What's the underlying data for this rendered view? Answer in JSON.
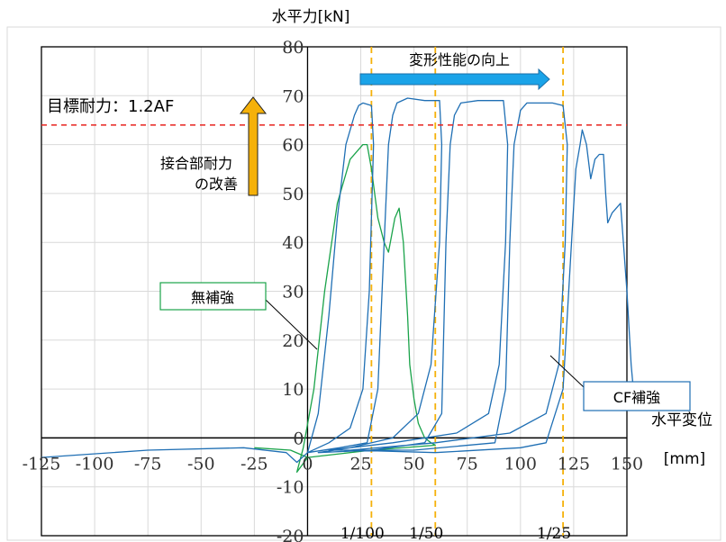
{
  "chart_data": {
    "type": "line",
    "ylabel": "水平力[kN]",
    "xlabel_line1": "水平変位",
    "xlabel_line2": "[mm]",
    "xlim": [
      -125,
      150
    ],
    "ylim": [
      -20,
      80
    ],
    "x_ticks": [
      -125,
      -100,
      -75,
      -50,
      -25,
      0,
      25,
      50,
      75,
      100,
      125,
      150
    ],
    "y_ticks": [
      -20,
      -10,
      0,
      10,
      20,
      30,
      40,
      50,
      60,
      70,
      80
    ],
    "grid": true,
    "annotations": {
      "target_label": "目標耐力：1.2AF",
      "target_value": 64,
      "deform_label": "変形性能の向上",
      "joint_label_line1": "接合部耐力",
      "joint_label_line2": "の改善",
      "unreinforced_label": "無補強",
      "cf_label": "CF補強"
    },
    "drift_lines": [
      {
        "label": "1/100",
        "x": 30
      },
      {
        "label": "1/50",
        "x": 60
      },
      {
        "label": "1/25",
        "x": 120
      }
    ],
    "series": [
      {
        "name": "無補強",
        "color": "#1aa34a",
        "points": [
          [
            -25,
            -2
          ],
          [
            -8,
            -2.5
          ],
          [
            0,
            -4
          ],
          [
            -5,
            -7
          ],
          [
            -2,
            -2
          ],
          [
            3,
            10
          ],
          [
            8,
            30
          ],
          [
            14,
            48
          ],
          [
            20,
            57
          ],
          [
            26,
            60
          ],
          [
            28,
            60
          ],
          [
            30,
            55
          ],
          [
            33,
            45
          ],
          [
            36,
            40
          ],
          [
            38,
            38
          ],
          [
            41,
            45
          ],
          [
            43,
            47
          ],
          [
            45,
            40
          ],
          [
            47,
            25
          ],
          [
            48,
            15
          ],
          [
            50,
            8
          ],
          [
            52,
            3
          ],
          [
            55,
            0
          ],
          [
            58,
            -1
          ],
          [
            60,
            -1.5
          ],
          [
            30,
            -2.5
          ],
          [
            0,
            -4
          ]
        ]
      },
      {
        "name": "CF補強",
        "color": "#1f6fb4",
        "points": [
          [
            -125,
            -4
          ],
          [
            -75,
            -2.5
          ],
          [
            -30,
            -2
          ],
          [
            -10,
            -3
          ],
          [
            -5,
            -5
          ],
          [
            0,
            -3
          ],
          [
            5,
            5
          ],
          [
            10,
            25
          ],
          [
            14,
            45
          ],
          [
            18,
            60
          ],
          [
            22,
            66
          ],
          [
            24,
            68
          ],
          [
            26,
            68.5
          ],
          [
            30,
            68
          ],
          [
            31,
            60
          ],
          [
            29,
            30
          ],
          [
            26,
            10
          ],
          [
            20,
            2
          ],
          [
            10,
            -1
          ],
          [
            0,
            -3
          ],
          [
            15,
            -2
          ],
          [
            28,
            -1
          ],
          [
            33,
            10
          ],
          [
            36,
            40
          ],
          [
            38,
            60
          ],
          [
            40,
            66
          ],
          [
            42,
            68.5
          ],
          [
            47,
            69.5
          ],
          [
            55,
            69
          ],
          [
            62,
            69
          ],
          [
            63,
            60
          ],
          [
            62,
            40
          ],
          [
            58,
            15
          ],
          [
            52,
            5
          ],
          [
            40,
            0
          ],
          [
            20,
            -2
          ],
          [
            5,
            -3
          ],
          [
            30,
            -2.5
          ],
          [
            55,
            -1
          ],
          [
            63,
            5
          ],
          [
            65,
            40
          ],
          [
            67,
            60
          ],
          [
            69,
            66
          ],
          [
            72,
            68.5
          ],
          [
            80,
            69
          ],
          [
            92,
            69
          ],
          [
            94,
            60
          ],
          [
            93,
            40
          ],
          [
            90,
            15
          ],
          [
            85,
            5
          ],
          [
            70,
            1
          ],
          [
            40,
            -1
          ],
          [
            10,
            -2.5
          ],
          [
            50,
            -2.5
          ],
          [
            88,
            -1
          ],
          [
            93,
            10
          ],
          [
            95,
            40
          ],
          [
            97,
            60
          ],
          [
            100,
            67
          ],
          [
            103,
            68.5
          ],
          [
            115,
            68.5
          ],
          [
            120,
            68
          ],
          [
            122,
            60
          ],
          [
            121,
            40
          ],
          [
            118,
            15
          ],
          [
            112,
            5
          ],
          [
            95,
            1
          ],
          [
            60,
            -1
          ],
          [
            20,
            -2.5
          ],
          [
            60,
            -3
          ],
          [
            100,
            -2
          ],
          [
            112,
            -1
          ],
          [
            120,
            10
          ],
          [
            124,
            40
          ],
          [
            126,
            55
          ],
          [
            128,
            60
          ],
          [
            129,
            63
          ],
          [
            131,
            60
          ],
          [
            133,
            53
          ],
          [
            135,
            57
          ],
          [
            137,
            58
          ],
          [
            139,
            58
          ],
          [
            140,
            50
          ],
          [
            141,
            44
          ],
          [
            143,
            46
          ],
          [
            147,
            48
          ],
          [
            150,
            30
          ],
          [
            152,
            15
          ],
          [
            153,
            10
          ]
        ]
      }
    ]
  }
}
